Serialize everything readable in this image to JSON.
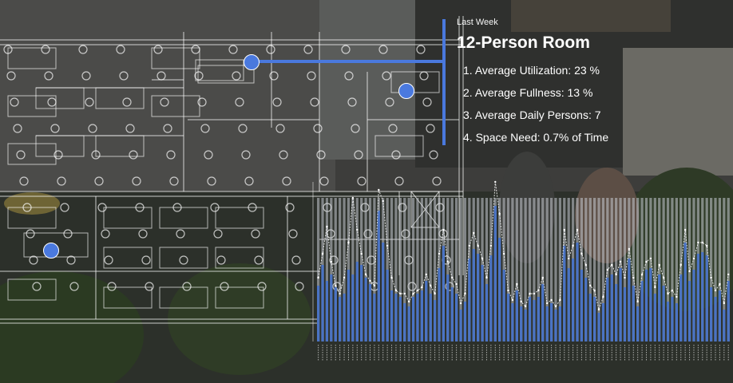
{
  "info": {
    "period": "Last Week",
    "title": "12-Person Room",
    "metrics": [
      {
        "num": "1.",
        "text": "Average Utilization: 23 %"
      },
      {
        "num": "2.",
        "text": "Average Fullness: 13 %"
      },
      {
        "num": "3.",
        "text": "Average Daily Persons: 7"
      },
      {
        "num": "4.",
        "text": "Space Need: 0.7% of Time"
      }
    ]
  },
  "colors": {
    "accent": "#4a79de",
    "bar": "#4a73c4",
    "barTrack": "#c8ccd4",
    "overlay": "#ffffff"
  },
  "chart_data": {
    "type": "bar",
    "series": [
      {
        "values": [
          0.35,
          0.48,
          0.38,
          0.42,
          0.34,
          0.28,
          0.3,
          0.45,
          0.42,
          0.5,
          0.48,
          0.4,
          0.36,
          0.3,
          0.82,
          0.62,
          0.45,
          0.32,
          0.3,
          0.28,
          0.24,
          0.22,
          0.28,
          0.3,
          0.32,
          0.38,
          0.3,
          0.26,
          0.46,
          0.6,
          0.42,
          0.34,
          0.3,
          0.2,
          0.25,
          0.52,
          0.58,
          0.55,
          0.48,
          0.36,
          0.54,
          0.85,
          0.65,
          0.45,
          0.3,
          0.24,
          0.32,
          0.22,
          0.2,
          0.28,
          0.26,
          0.28,
          0.36,
          0.22,
          0.24,
          0.2,
          0.22,
          0.6,
          0.46,
          0.52,
          0.62,
          0.45,
          0.4,
          0.3,
          0.28,
          0.18,
          0.24,
          0.4,
          0.42,
          0.36,
          0.46,
          0.34,
          0.52,
          0.35,
          0.22,
          0.38,
          0.45,
          0.46,
          0.3,
          0.42,
          0.35,
          0.25,
          0.28,
          0.24,
          0.42,
          0.62,
          0.38,
          0.45,
          0.55,
          0.56,
          0.54,
          0.34,
          0.28,
          0.32,
          0.2,
          0.38
        ]
      },
      {
        "values": [
          0.4,
          0.55,
          0.72,
          0.5,
          0.35,
          0.3,
          0.4,
          0.62,
          0.9,
          0.7,
          0.55,
          0.42,
          0.38,
          0.35,
          0.95,
          0.88,
          0.6,
          0.4,
          0.32,
          0.3,
          0.3,
          0.25,
          0.3,
          0.32,
          0.34,
          0.42,
          0.35,
          0.3,
          0.55,
          0.7,
          0.5,
          0.4,
          0.36,
          0.24,
          0.3,
          0.6,
          0.68,
          0.6,
          0.52,
          0.4,
          0.6,
          1.0,
          0.8,
          0.55,
          0.32,
          0.26,
          0.36,
          0.25,
          0.22,
          0.3,
          0.3,
          0.32,
          0.4,
          0.24,
          0.26,
          0.22,
          0.26,
          0.7,
          0.52,
          0.6,
          0.7,
          0.55,
          0.48,
          0.35,
          0.32,
          0.2,
          0.28,
          0.45,
          0.48,
          0.42,
          0.5,
          0.4,
          0.58,
          0.4,
          0.25,
          0.42,
          0.5,
          0.52,
          0.34,
          0.48,
          0.4,
          0.3,
          0.32,
          0.28,
          0.48,
          0.7,
          0.44,
          0.52,
          0.62,
          0.62,
          0.6,
          0.4,
          0.32,
          0.36,
          0.24,
          0.42
        ]
      }
    ]
  }
}
